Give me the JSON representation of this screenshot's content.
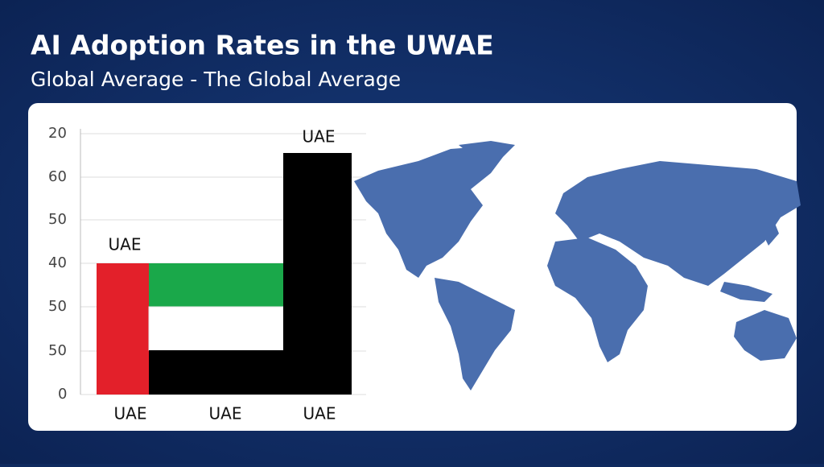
{
  "header": {
    "title": "AI Adoption Rates in the UWAE",
    "subtitle": "Global Average - The Global Average"
  },
  "panel": {
    "axis_labels": [
      "20",
      "60",
      "50",
      "40",
      "50",
      "50",
      "0"
    ],
    "shape_labels": [
      "UAE",
      "UAE"
    ],
    "category_labels": [
      "UAE",
      "UAE",
      "UAE"
    ]
  }
}
